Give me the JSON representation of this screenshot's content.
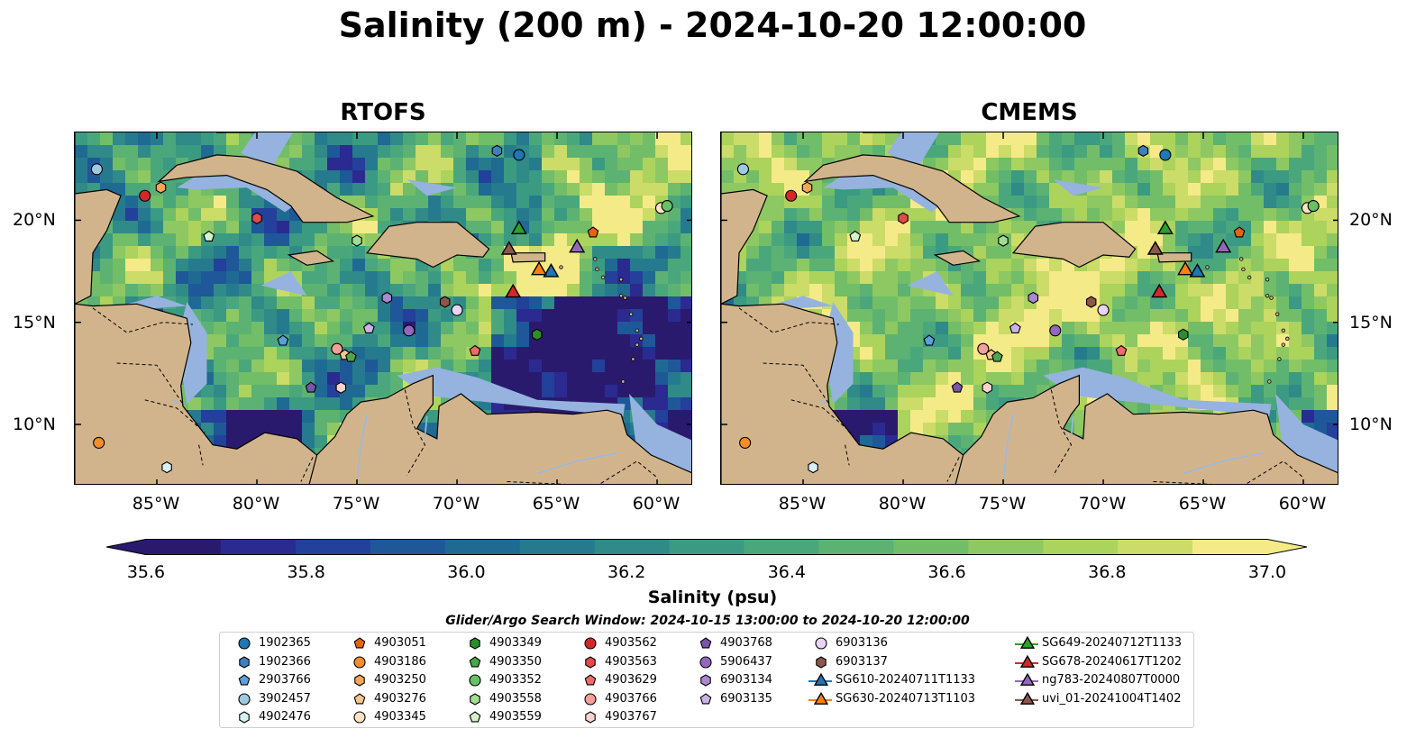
{
  "title": "Salinity (200 m) - 2024-10-20 12:00:00",
  "panels": [
    {
      "title": "RTOFS"
    },
    {
      "title": "CMEMS"
    }
  ],
  "lon_ticks": [
    "85°W",
    "80°W",
    "75°W",
    "70°W",
    "65°W",
    "60°W"
  ],
  "lat_ticks": [
    "20°N",
    "15°N",
    "10°N"
  ],
  "colorbar": {
    "label": "Salinity (psu)",
    "range": [
      35.6,
      37.0
    ],
    "ticks": [
      "35.6",
      "35.8",
      "36.0",
      "36.2",
      "36.4",
      "36.6",
      "36.8",
      "37.0"
    ],
    "colors": [
      "#2a1a6e",
      "#2b2a91",
      "#23409a",
      "#1e5898",
      "#1f6a92",
      "#267a8e",
      "#2f8a88",
      "#3b9a82",
      "#4aa77c",
      "#5cb272",
      "#72bd68",
      "#8ec862",
      "#acd35c",
      "#cbdc68",
      "#f5ea88"
    ],
    "extend": "both"
  },
  "search_window": "Glider/Argo Search Window: 2024-10-15 13:00:00 to 2024-10-20 12:00:00",
  "map_colors": {
    "land": "#d2b48c",
    "shallow": "#95b3de",
    "river": "#9cb8e0"
  },
  "legend": [
    {
      "label": "1902365",
      "marker": "circle",
      "color": "#1f77b4"
    },
    {
      "label": "1902366",
      "marker": "hexagon",
      "color": "#3f7fbf"
    },
    {
      "label": "2903766",
      "marker": "pentagon",
      "color": "#5aa0dc"
    },
    {
      "label": "3902457",
      "marker": "circle",
      "color": "#9ecae1"
    },
    {
      "label": "4902476",
      "marker": "hexagon",
      "color": "#d9f0f5"
    },
    {
      "label": "4903051",
      "marker": "pentagon",
      "color": "#e6650a"
    },
    {
      "label": "4903186",
      "marker": "circle",
      "color": "#f28e2b"
    },
    {
      "label": "4903250",
      "marker": "hexagon",
      "color": "#f6a55a"
    },
    {
      "label": "4903276",
      "marker": "pentagon",
      "color": "#f9c591"
    },
    {
      "label": "4903345",
      "marker": "circle",
      "color": "#fde3c4"
    },
    {
      "label": "4903349",
      "marker": "hexagon",
      "color": "#2a8f2a"
    },
    {
      "label": "4903350",
      "marker": "pentagon",
      "color": "#4aa84a"
    },
    {
      "label": "4903352",
      "marker": "circle",
      "color": "#67c167"
    },
    {
      "label": "4903558",
      "marker": "hexagon",
      "color": "#a3dd93"
    },
    {
      "label": "4903559",
      "marker": "pentagon",
      "color": "#d5f2c9"
    },
    {
      "label": "4903562",
      "marker": "circle",
      "color": "#d62728"
    },
    {
      "label": "4903563",
      "marker": "hexagon",
      "color": "#e34a4a"
    },
    {
      "label": "4903629",
      "marker": "pentagon",
      "color": "#ef6a6a"
    },
    {
      "label": "4903766",
      "marker": "circle",
      "color": "#f4a09a"
    },
    {
      "label": "4903767",
      "marker": "hexagon",
      "color": "#fbd3cc"
    },
    {
      "label": "4903768",
      "marker": "pentagon",
      "color": "#7b55a8"
    },
    {
      "label": "5906437",
      "marker": "circle",
      "color": "#9467bd"
    },
    {
      "label": "6903134",
      "marker": "hexagon",
      "color": "#ab88d2"
    },
    {
      "label": "6903135",
      "marker": "pentagon",
      "color": "#cbb3e8"
    },
    {
      "label": "6903136",
      "marker": "circle",
      "color": "#e6d5f7"
    },
    {
      "label": "6903137",
      "marker": "hexagon",
      "color": "#8c564b"
    },
    {
      "label": "SG610-20240711T1133",
      "marker": "triangle",
      "color": "#1f77b4"
    },
    {
      "label": "SG630-20240713T1103",
      "marker": "triangle",
      "color": "#ff7f0e"
    },
    {
      "label": "SG649-20240712T1133",
      "marker": "triangle",
      "color": "#2ca02c"
    },
    {
      "label": "SG678-20240617T1202",
      "marker": "triangle",
      "color": "#d62728"
    },
    {
      "label": "ng783-20240807T0000",
      "marker": "triangle",
      "color": "#9467bd"
    },
    {
      "label": "uvi_01-20241004T1402",
      "marker": "triangle",
      "color": "#8c564b"
    }
  ],
  "observations": [
    {
      "id": "1902365",
      "lon": -66.9,
      "lat": 23.2
    },
    {
      "id": "1902366",
      "lon": -68.0,
      "lat": 23.4
    },
    {
      "id": "2903766",
      "lon": -78.7,
      "lat": 14.1
    },
    {
      "id": "3902457",
      "lon": -88.0,
      "lat": 22.5
    },
    {
      "id": "4902476",
      "lon": -84.5,
      "lat": 7.9
    },
    {
      "id": "4903051",
      "lon": -63.2,
      "lat": 19.4
    },
    {
      "id": "4903186",
      "lon": -87.9,
      "lat": 9.1
    },
    {
      "id": "4903250",
      "lon": -84.8,
      "lat": 21.6
    },
    {
      "id": "4903276",
      "lon": -75.6,
      "lat": 13.4
    },
    {
      "id": "4903345",
      "lon": -59.8,
      "lat": 20.6
    },
    {
      "id": "4903349",
      "lon": -66.0,
      "lat": 14.4
    },
    {
      "id": "4903350",
      "lon": -75.3,
      "lat": 13.3
    },
    {
      "id": "4903352",
      "lon": -59.5,
      "lat": 20.7
    },
    {
      "id": "4903558",
      "lon": -75.0,
      "lat": 19.0
    },
    {
      "id": "4903559",
      "lon": -82.4,
      "lat": 19.2
    },
    {
      "id": "4903562",
      "lon": -85.6,
      "lat": 21.2
    },
    {
      "id": "4903563",
      "lon": -80.0,
      "lat": 20.1
    },
    {
      "id": "4903629",
      "lon": -69.1,
      "lat": 13.6
    },
    {
      "id": "4903766",
      "lon": -76.0,
      "lat": 13.7
    },
    {
      "id": "4903767",
      "lon": -75.8,
      "lat": 11.8
    },
    {
      "id": "4903768",
      "lon": -77.3,
      "lat": 11.8
    },
    {
      "id": "5906437",
      "lon": -72.4,
      "lat": 14.6
    },
    {
      "id": "6903134",
      "lon": -73.5,
      "lat": 16.2
    },
    {
      "id": "6903135",
      "lon": -74.4,
      "lat": 14.7
    },
    {
      "id": "6903136",
      "lon": -70.0,
      "lat": 15.6
    },
    {
      "id": "6903137",
      "lon": -70.6,
      "lat": 16.0
    },
    {
      "id": "SG610-20240711T1133",
      "lon": -65.3,
      "lat": 17.5
    },
    {
      "id": "SG630-20240713T1103",
      "lon": -65.9,
      "lat": 17.6
    },
    {
      "id": "SG649-20240712T1133",
      "lon": -66.9,
      "lat": 19.6
    },
    {
      "id": "SG678-20240617T1202",
      "lon": -67.2,
      "lat": 16.5
    },
    {
      "id": "ng783-20240807T0000",
      "lon": -64.0,
      "lat": 18.7
    },
    {
      "id": "uvi_01-20241004T1402",
      "lon": -67.4,
      "lat": 18.6
    }
  ]
}
